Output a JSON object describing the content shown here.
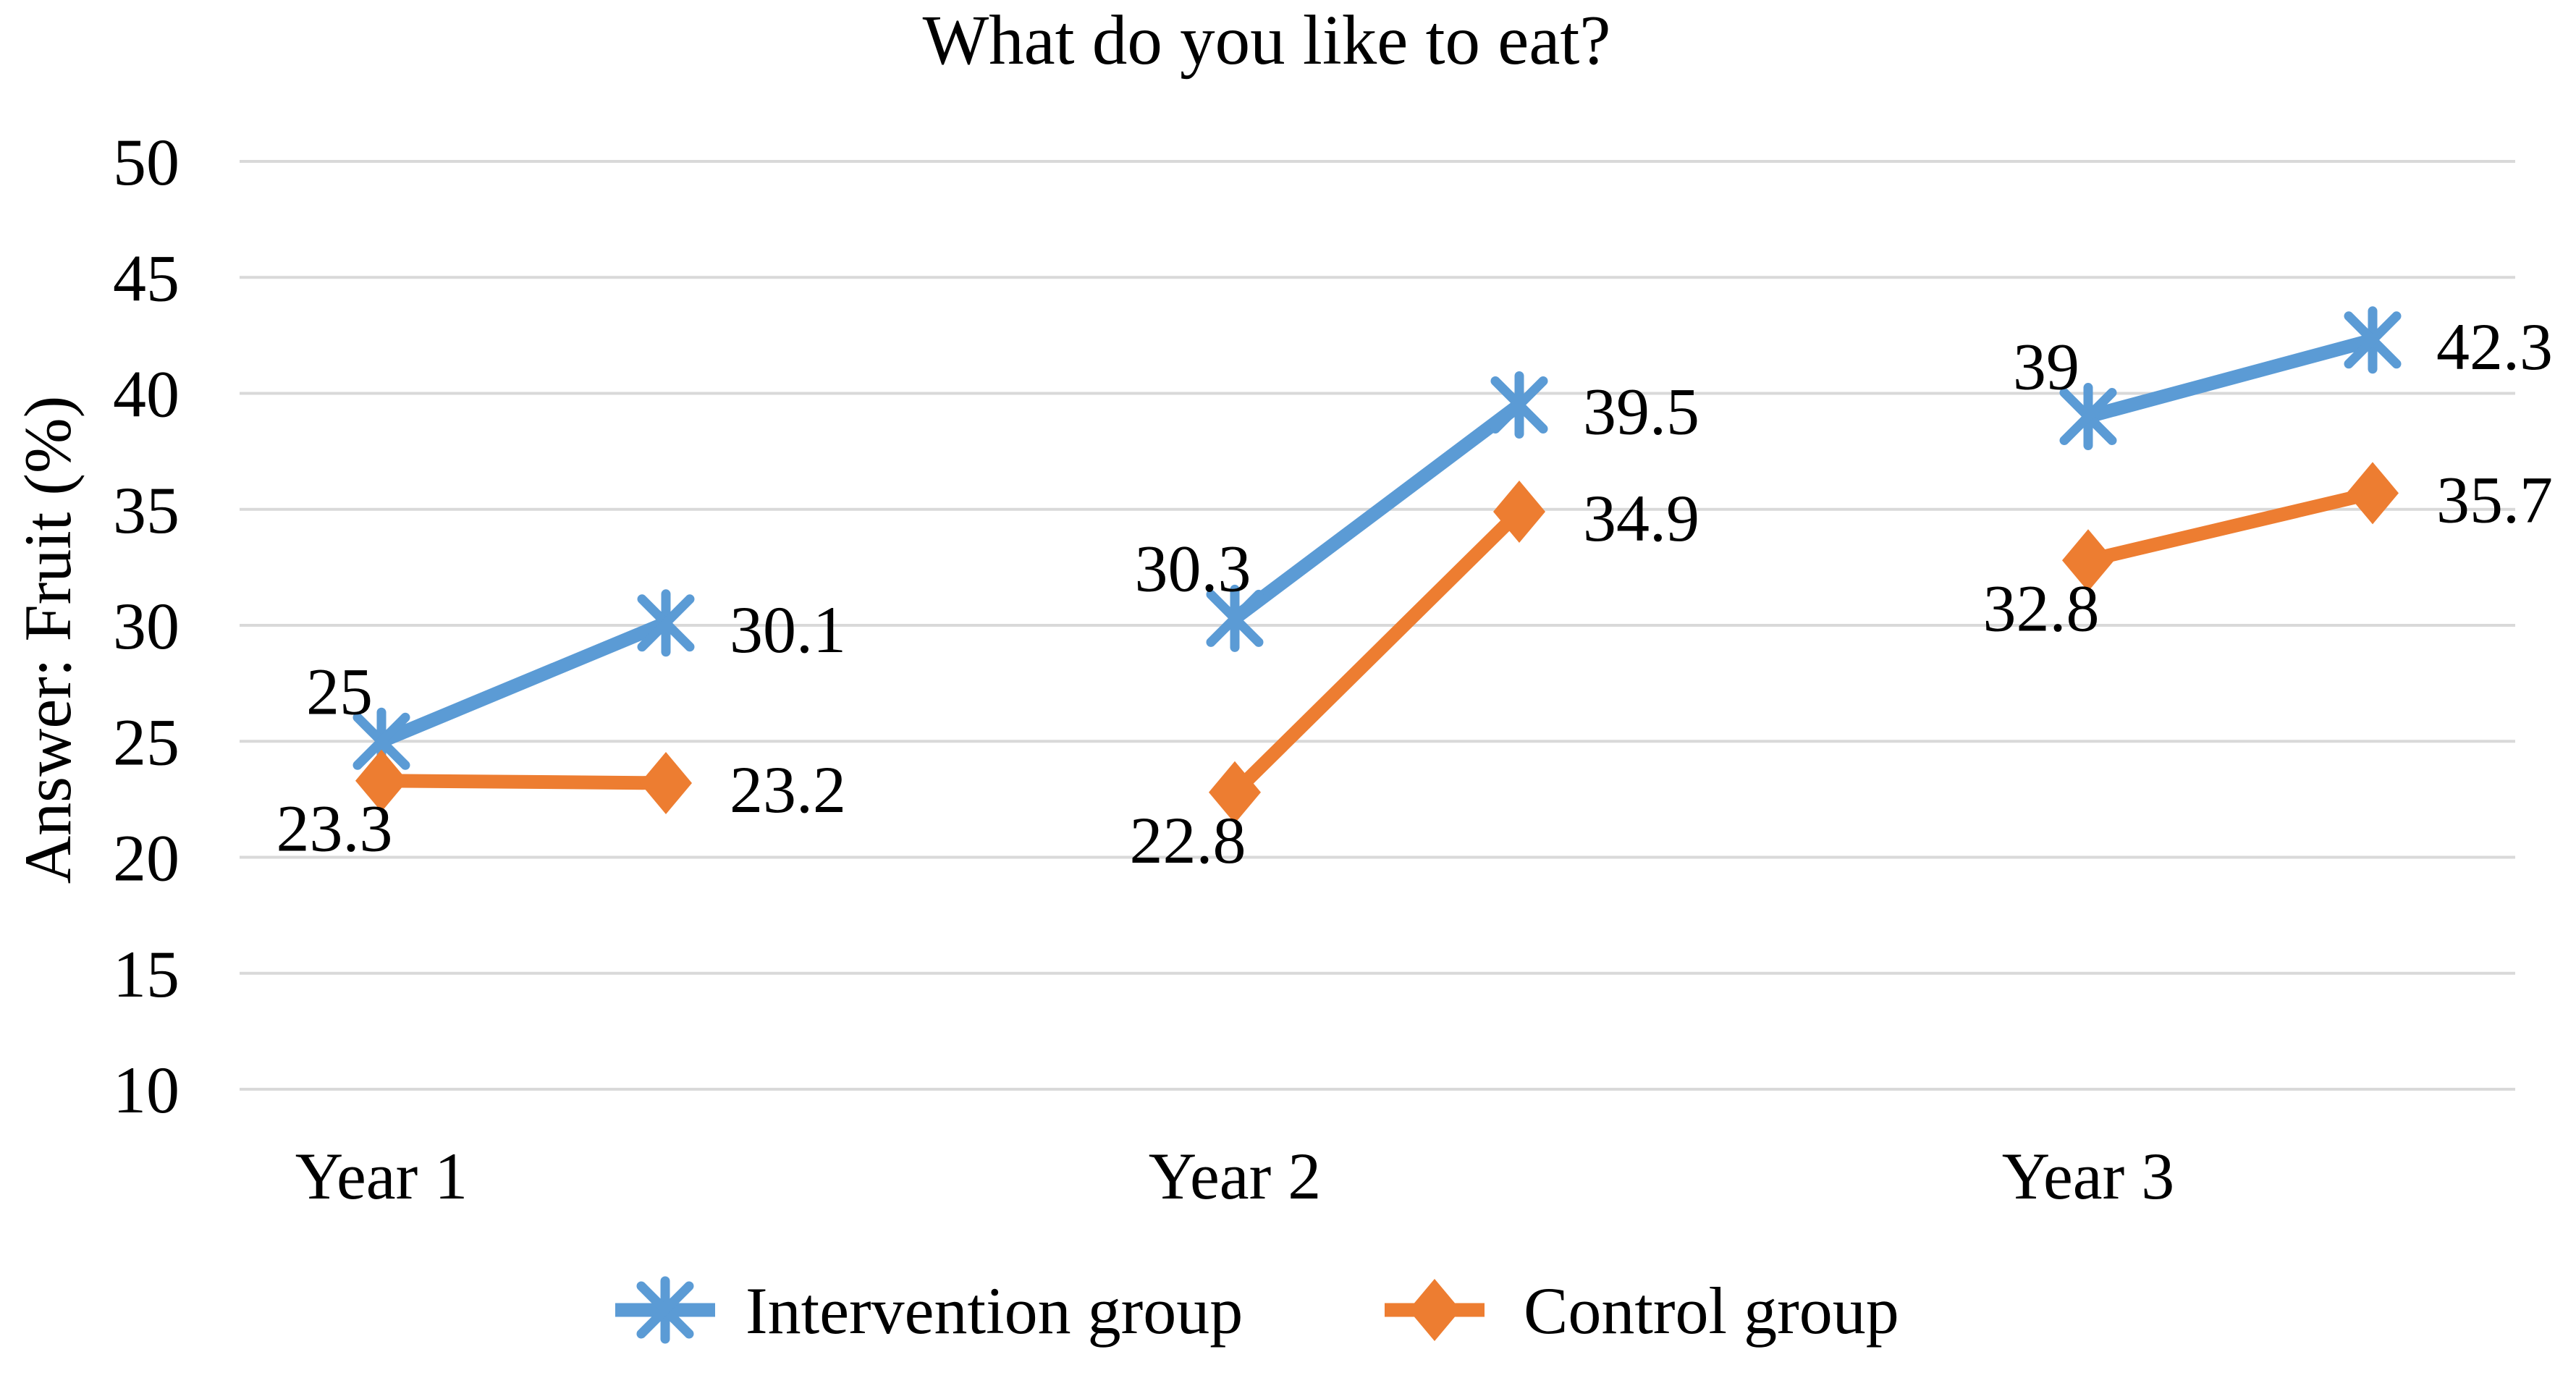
{
  "chart_data": {
    "type": "line",
    "title": "What do you like to eat?",
    "ylabel": "Answer: Fruit (%)",
    "ylim": [
      10,
      50
    ],
    "yticks": [
      "50",
      "45",
      "40",
      "35",
      "30",
      "25",
      "20",
      "15",
      "10"
    ],
    "ytick_values": [
      50,
      45,
      40,
      35,
      30,
      25,
      20,
      15,
      10
    ],
    "categories": [
      "Year 1",
      "Year 2",
      "Year 3"
    ],
    "points_per_category": 2,
    "grid": "horizontal-only",
    "gridline_color": "#D9D9D9",
    "text_color": "#000000",
    "background_color": "#FFFFFF",
    "legend_position": "bottom",
    "series": [
      {
        "name": "Intervention group",
        "color": "#5B9BD5",
        "marker": "star-icon",
        "values": [
          [
            25,
            30.1
          ],
          [
            30.3,
            39.5
          ],
          [
            39,
            42.3
          ]
        ],
        "labels": [
          [
            "25",
            "30.1"
          ],
          [
            "30.3",
            "39.5"
          ],
          [
            "39",
            "42.3"
          ]
        ],
        "label_first_position": "above-left",
        "label_second_position": "right"
      },
      {
        "name": "Control group",
        "color": "#ED7D31",
        "marker": "diamond-icon",
        "values": [
          [
            23.3,
            23.2
          ],
          [
            22.8,
            34.9
          ],
          [
            32.8,
            35.7
          ]
        ],
        "labels": [
          [
            "23.3",
            "23.2"
          ],
          [
            "22.8",
            "34.9"
          ],
          [
            "32.8",
            "35.7"
          ]
        ],
        "label_first_position": "below-left",
        "label_second_position": "right"
      }
    ]
  }
}
